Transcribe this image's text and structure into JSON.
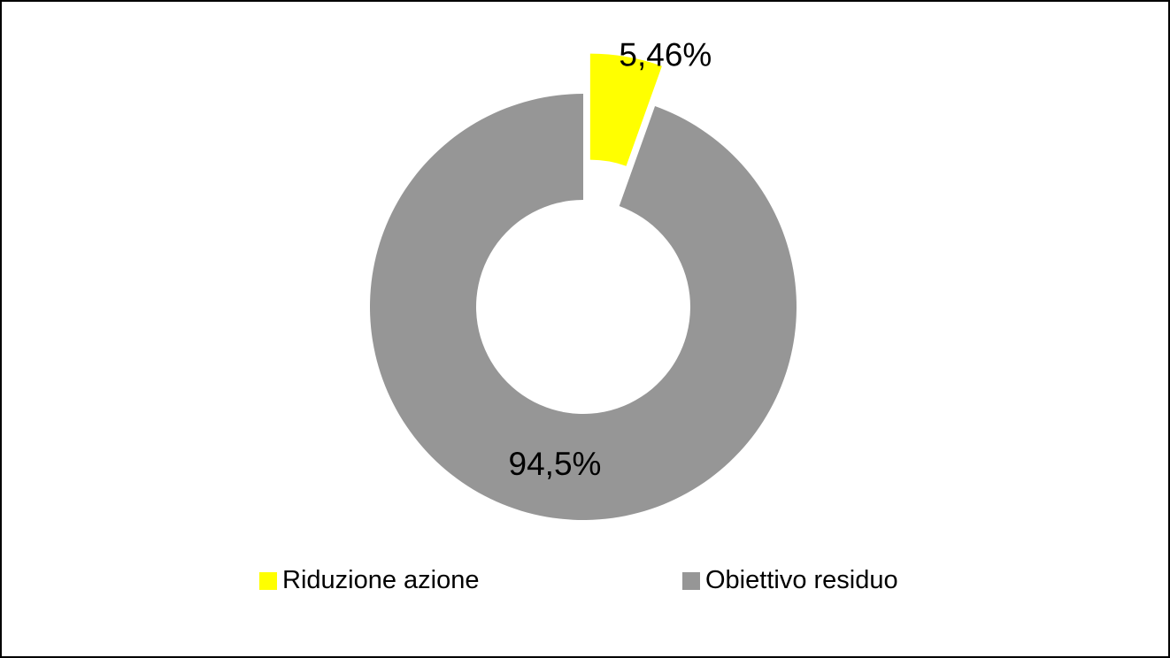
{
  "chart_data": {
    "type": "pie",
    "variant": "donut",
    "title": "",
    "slices": [
      {
        "name": "Riduzione azione",
        "value": 5.46,
        "label": "5,46%",
        "color": "#ffff00",
        "exploded": true
      },
      {
        "name": "Obiettivo residuo",
        "value": 94.54,
        "label": "94,5%",
        "color": "#969696",
        "exploded": false
      }
    ],
    "start_angle_deg": 0,
    "direction": "clockwise",
    "legend_position": "bottom"
  }
}
